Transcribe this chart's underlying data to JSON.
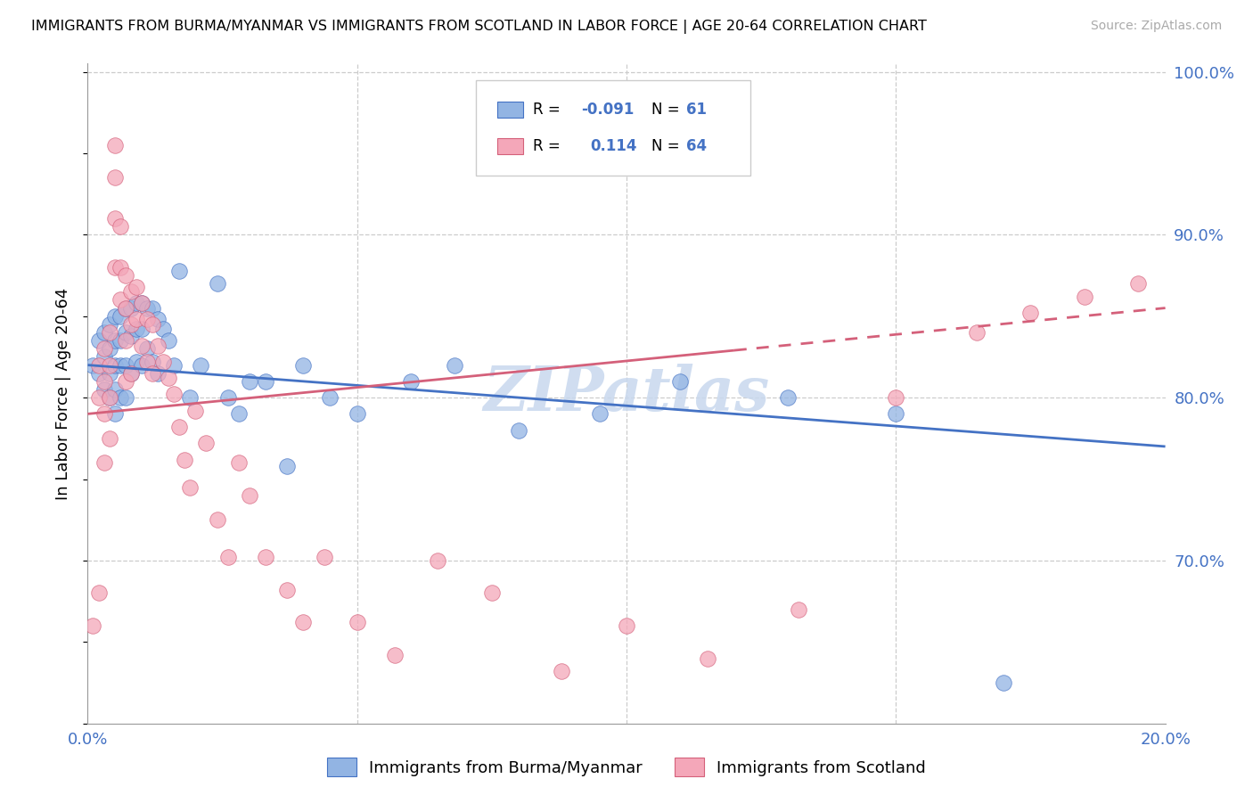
{
  "title": "IMMIGRANTS FROM BURMA/MYANMAR VS IMMIGRANTS FROM SCOTLAND IN LABOR FORCE | AGE 20-64 CORRELATION CHART",
  "source": "Source: ZipAtlas.com",
  "ylabel": "In Labor Force | Age 20-64",
  "xlim": [
    0.0,
    0.2
  ],
  "ylim": [
    0.6,
    1.005
  ],
  "watermark": "ZIPatlas",
  "color_burma": "#92b4e3",
  "color_scotland": "#f4a7b9",
  "trend_color_burma": "#4472c4",
  "trend_color_scotland": "#d4607a",
  "background": "#ffffff",
  "grid_color": "#cccccc",
  "burma_x": [
    0.001,
    0.002,
    0.002,
    0.003,
    0.003,
    0.003,
    0.004,
    0.004,
    0.004,
    0.004,
    0.005,
    0.005,
    0.005,
    0.005,
    0.005,
    0.006,
    0.006,
    0.006,
    0.006,
    0.007,
    0.007,
    0.007,
    0.007,
    0.008,
    0.008,
    0.008,
    0.009,
    0.009,
    0.009,
    0.01,
    0.01,
    0.01,
    0.011,
    0.011,
    0.012,
    0.012,
    0.013,
    0.013,
    0.014,
    0.015,
    0.016,
    0.017,
    0.019,
    0.021,
    0.024,
    0.026,
    0.028,
    0.03,
    0.033,
    0.037,
    0.04,
    0.045,
    0.05,
    0.06,
    0.068,
    0.08,
    0.095,
    0.11,
    0.13,
    0.15,
    0.17
  ],
  "burma_y": [
    0.82,
    0.835,
    0.815,
    0.84,
    0.825,
    0.805,
    0.845,
    0.83,
    0.815,
    0.8,
    0.85,
    0.835,
    0.82,
    0.805,
    0.79,
    0.85,
    0.835,
    0.82,
    0.8,
    0.855,
    0.84,
    0.82,
    0.8,
    0.855,
    0.838,
    0.815,
    0.858,
    0.842,
    0.822,
    0.858,
    0.842,
    0.82,
    0.855,
    0.83,
    0.855,
    0.822,
    0.848,
    0.815,
    0.842,
    0.835,
    0.82,
    0.878,
    0.8,
    0.82,
    0.87,
    0.8,
    0.79,
    0.81,
    0.81,
    0.758,
    0.82,
    0.8,
    0.79,
    0.81,
    0.82,
    0.78,
    0.79,
    0.81,
    0.8,
    0.79,
    0.625
  ],
  "scotland_x": [
    0.001,
    0.002,
    0.002,
    0.002,
    0.003,
    0.003,
    0.003,
    0.003,
    0.004,
    0.004,
    0.004,
    0.004,
    0.005,
    0.005,
    0.005,
    0.005,
    0.006,
    0.006,
    0.006,
    0.007,
    0.007,
    0.007,
    0.007,
    0.008,
    0.008,
    0.008,
    0.009,
    0.009,
    0.01,
    0.01,
    0.011,
    0.011,
    0.012,
    0.012,
    0.013,
    0.014,
    0.015,
    0.016,
    0.017,
    0.018,
    0.019,
    0.02,
    0.022,
    0.024,
    0.026,
    0.028,
    0.03,
    0.033,
    0.037,
    0.04,
    0.044,
    0.05,
    0.057,
    0.065,
    0.075,
    0.088,
    0.1,
    0.115,
    0.132,
    0.15,
    0.165,
    0.175,
    0.185,
    0.195
  ],
  "scotland_y": [
    0.66,
    0.82,
    0.8,
    0.68,
    0.83,
    0.81,
    0.79,
    0.76,
    0.84,
    0.82,
    0.8,
    0.775,
    0.955,
    0.935,
    0.91,
    0.88,
    0.905,
    0.88,
    0.86,
    0.875,
    0.855,
    0.835,
    0.81,
    0.865,
    0.845,
    0.815,
    0.868,
    0.848,
    0.858,
    0.832,
    0.848,
    0.822,
    0.845,
    0.815,
    0.832,
    0.822,
    0.812,
    0.802,
    0.782,
    0.762,
    0.745,
    0.792,
    0.772,
    0.725,
    0.702,
    0.76,
    0.74,
    0.702,
    0.682,
    0.662,
    0.702,
    0.662,
    0.642,
    0.7,
    0.68,
    0.632,
    0.66,
    0.64,
    0.67,
    0.8,
    0.84,
    0.852,
    0.862,
    0.87
  ],
  "trend_burma_x0": 0.0,
  "trend_burma_y0": 0.82,
  "trend_burma_x1": 0.2,
  "trend_burma_y1": 0.77,
  "trend_scotland_x0": 0.0,
  "trend_scotland_y0": 0.79,
  "trend_scotland_x1": 0.2,
  "trend_scotland_y1": 0.855,
  "trend_scotland_dash_x0": 0.1,
  "trend_scotland_dash_x1": 0.2
}
